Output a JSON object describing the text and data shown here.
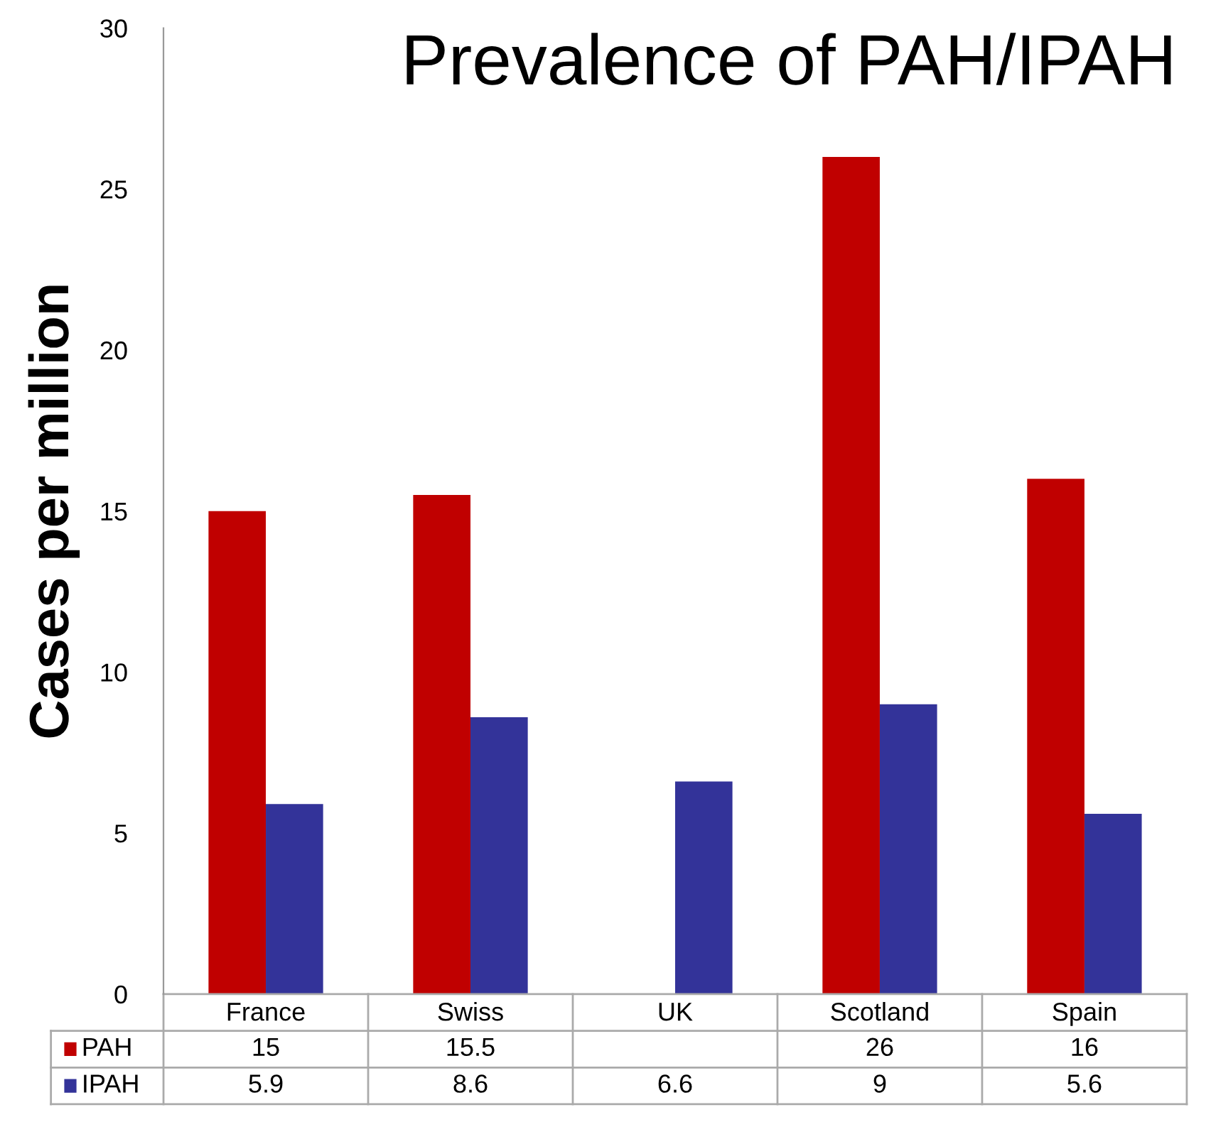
{
  "chart_data": {
    "type": "bar",
    "title": "Prevalence of PAH/IPAH",
    "ylabel": "Cases per million",
    "categories": [
      "France",
      "Swiss",
      "UK",
      "Scotland",
      "Spain"
    ],
    "series": [
      {
        "name": "PAH",
        "color": "#c00000",
        "values": [
          15,
          15.5,
          null,
          26,
          16
        ]
      },
      {
        "name": "IPAH",
        "color": "#333399",
        "values": [
          5.9,
          8.6,
          6.6,
          9,
          5.6
        ]
      }
    ],
    "ylim": [
      0,
      30
    ],
    "yticks": [
      0,
      5,
      10,
      15,
      20,
      25,
      30
    ],
    "grid": false,
    "legend": "bottom",
    "data_labels": true
  }
}
